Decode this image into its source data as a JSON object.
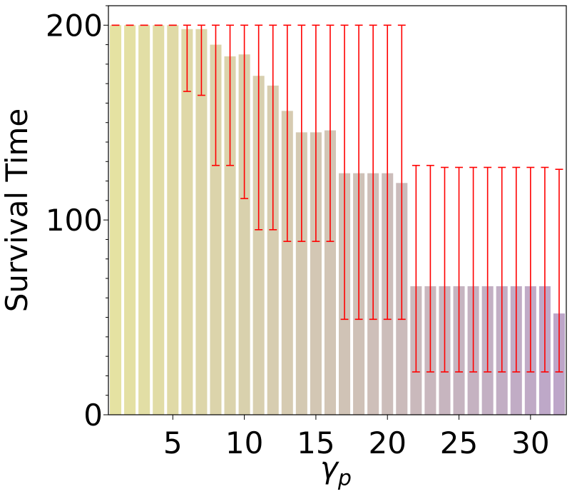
{
  "chart_data": {
    "type": "bar",
    "ylabel": "Survival Time",
    "xlabel_main": "γ",
    "xlabel_sub": "p",
    "x": [
      1,
      2,
      3,
      4,
      5,
      6,
      7,
      8,
      9,
      10,
      11,
      12,
      13,
      14,
      15,
      16,
      17,
      18,
      19,
      20,
      21,
      22,
      23,
      24,
      25,
      26,
      27,
      28,
      29,
      30,
      31,
      32
    ],
    "values": [
      200,
      200,
      200,
      200,
      200,
      198,
      198,
      190,
      184,
      185,
      174,
      169,
      156,
      145,
      145,
      146,
      124,
      124,
      124,
      124,
      119,
      66,
      66,
      66,
      66,
      66,
      66,
      66,
      66,
      66,
      66,
      52
    ],
    "err_low": [
      200,
      200,
      200,
      200,
      200,
      166,
      164,
      128,
      128,
      111,
      95,
      95,
      89,
      89,
      89,
      89,
      49,
      49,
      49,
      49,
      49,
      22,
      22,
      22,
      22,
      22,
      22,
      22,
      22,
      22,
      22,
      22
    ],
    "err_high": [
      200,
      200,
      200,
      200,
      200,
      200,
      200,
      200,
      200,
      200,
      200,
      200,
      200,
      200,
      200,
      200,
      200,
      200,
      200,
      200,
      200,
      128,
      128,
      127,
      127,
      127,
      127,
      127,
      127,
      127,
      127,
      126
    ],
    "x_ticks": [
      5,
      10,
      15,
      20,
      25,
      30
    ],
    "y_ticks": [
      0,
      100,
      200
    ],
    "ylim": [
      0,
      210
    ],
    "xlim": [
      0.5,
      32.5
    ],
    "bar_colors": [
      "#e5e2a2",
      "#bda6c9"
    ],
    "error_bar_color": "#ff0000",
    "grid": false
  }
}
